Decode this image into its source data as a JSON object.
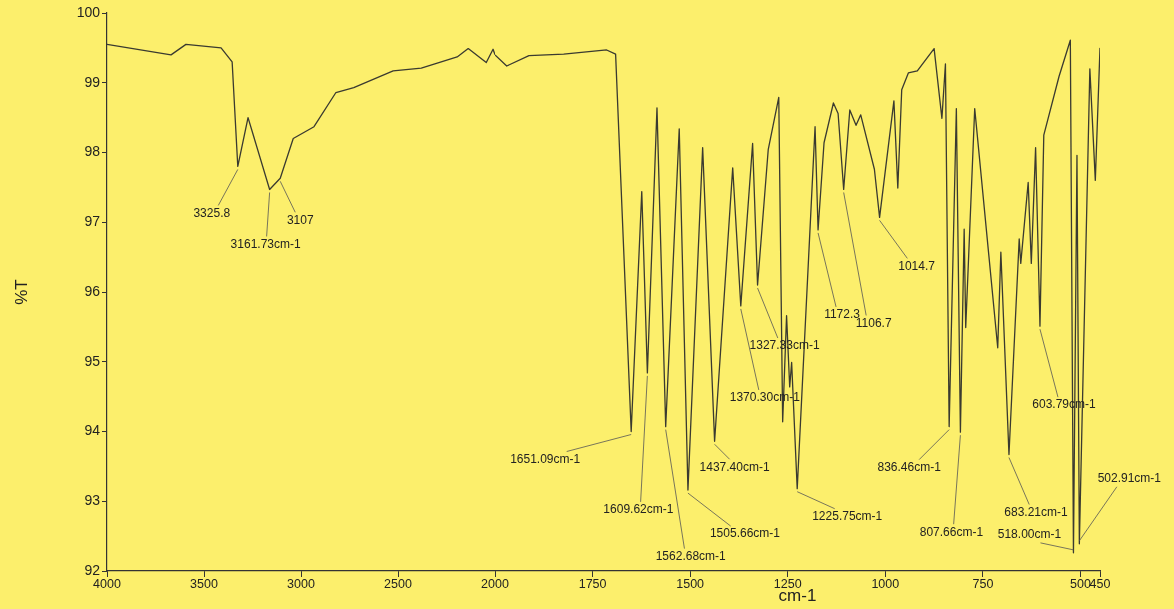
{
  "chart_data": [
    {
      "type": "line",
      "ylabel": "%T",
      "xlim": [
        4000,
        2000
      ],
      "xticks": [
        4000,
        3500,
        3000,
        2500,
        2000
      ],
      "ylim": [
        92,
        100
      ],
      "yticks": [
        92,
        93,
        94,
        95,
        96,
        97,
        98,
        99,
        100
      ],
      "grid": false,
      "legend": false,
      "marker": "none",
      "line_style": "solid",
      "series": [
        {
          "color": "#3a3a30",
          "x": [
            4000,
            3670,
            3593,
            3412,
            3355,
            3325.8,
            3273,
            3161.73,
            3107,
            3040,
            2933,
            2820,
            2728,
            2525,
            2380,
            2195,
            2138,
            2045,
            2010,
            2000
          ],
          "values": [
            99.55,
            99.4,
            99.55,
            99.5,
            99.3,
            97.8,
            98.5,
            97.47,
            97.63,
            98.2,
            98.37,
            98.86,
            98.93,
            99.17,
            99.21,
            99.37,
            99.49,
            99.29,
            99.48,
            99.4
          ]
        }
      ],
      "annotations": [
        {
          "text": "3325.8",
          "x": 3325.8,
          "y": 97.8
        },
        {
          "text": "3161.73cm-1",
          "x": 3161.73,
          "y": 97.47
        },
        {
          "text": "3107",
          "x": 3107,
          "y": 97.63
        }
      ]
    },
    {
      "type": "line",
      "xlabel": "cm-1",
      "tick_labels": "x",
      "xlim": [
        2000,
        450
      ],
      "xticks": [
        1750,
        1500,
        1250,
        1000,
        750,
        500,
        450
      ],
      "ylim": [
        92,
        100
      ],
      "grid": false,
      "legend": false,
      "marker": "none",
      "line_style": "solid",
      "series": [
        {
          "color": "#3a3a30",
          "x": [
            2000,
            1970,
            1913,
            1824,
            1714,
            1691,
            1651.09,
            1624,
            1609.62,
            1585,
            1562.68,
            1528,
            1505.66,
            1468,
            1437.4,
            1391,
            1370.3,
            1340,
            1327.33,
            1300,
            1273,
            1263,
            1253,
            1245,
            1240,
            1225.75,
            1180,
            1172.3,
            1157,
            1133,
            1121,
            1106.7,
            1091,
            1075,
            1063,
            1028,
            1014.7,
            978,
            968,
            958,
            941,
            918,
            875,
            855,
            846,
            836.46,
            818,
            807.66,
            798,
            794,
            771,
            712,
            704,
            683.21,
            657,
            653,
            634,
            626,
            615,
            603.79,
            594,
            555,
            526,
            518.0,
            509,
            502.91,
            476,
            462,
            450
          ],
          "values": [
            99.4,
            99.24,
            99.39,
            99.41,
            99.47,
            99.41,
            94.0,
            97.44,
            94.84,
            98.64,
            94.07,
            98.34,
            93.16,
            98.07,
            93.86,
            97.78,
            95.8,
            98.13,
            96.1,
            98.04,
            98.79,
            94.14,
            95.66,
            94.64,
            94.99,
            93.18,
            98.37,
            96.89,
            98.14,
            98.71,
            98.56,
            97.47,
            98.61,
            98.39,
            98.54,
            97.76,
            97.07,
            98.74,
            97.49,
            98.9,
            99.14,
            99.17,
            99.49,
            98.49,
            99.27,
            94.07,
            98.63,
            93.99,
            96.9,
            95.49,
            98.63,
            95.2,
            96.57,
            93.67,
            96.76,
            96.41,
            97.57,
            96.41,
            98.07,
            95.51,
            98.25,
            99.09,
            99.61,
            92.26,
            97.96,
            92.39,
            99.2,
            97.6,
            99.5
          ]
        }
      ],
      "annotations": [
        {
          "text": "1651.09cm-1",
          "x": 1651.09,
          "y": 94.0
        },
        {
          "text": "1609.62cm-1",
          "x": 1609.62,
          "y": 94.84
        },
        {
          "text": "1562.68cm-1",
          "x": 1562.68,
          "y": 94.07
        },
        {
          "text": "1505.66cm-1",
          "x": 1505.66,
          "y": 93.16
        },
        {
          "text": "1437.40cm-1",
          "x": 1437.4,
          "y": 93.86
        },
        {
          "text": "1370.30cm-1",
          "x": 1370.3,
          "y": 95.8
        },
        {
          "text": "1327.33cm-1",
          "x": 1327.33,
          "y": 96.1
        },
        {
          "text": "1225.75cm-1",
          "x": 1225.75,
          "y": 93.18
        },
        {
          "text": "1172.3",
          "x": 1172.3,
          "y": 96.89
        },
        {
          "text": "1106.7",
          "x": 1106.7,
          "y": 97.47
        },
        {
          "text": "1014.7",
          "x": 1014.7,
          "y": 97.07
        },
        {
          "text": "836.46cm-1",
          "x": 836.46,
          "y": 94.07
        },
        {
          "text": "807.66cm-1",
          "x": 807.66,
          "y": 93.99
        },
        {
          "text": "683.21cm-1",
          "x": 683.21,
          "y": 93.67
        },
        {
          "text": "603.79cm-1",
          "x": 603.79,
          "y": 95.51
        },
        {
          "text": "518.00cm-1",
          "x": 518.0,
          "y": 92.26
        },
        {
          "text": "502.91cm-1",
          "x": 502.91,
          "y": 92.39
        }
      ]
    }
  ]
}
